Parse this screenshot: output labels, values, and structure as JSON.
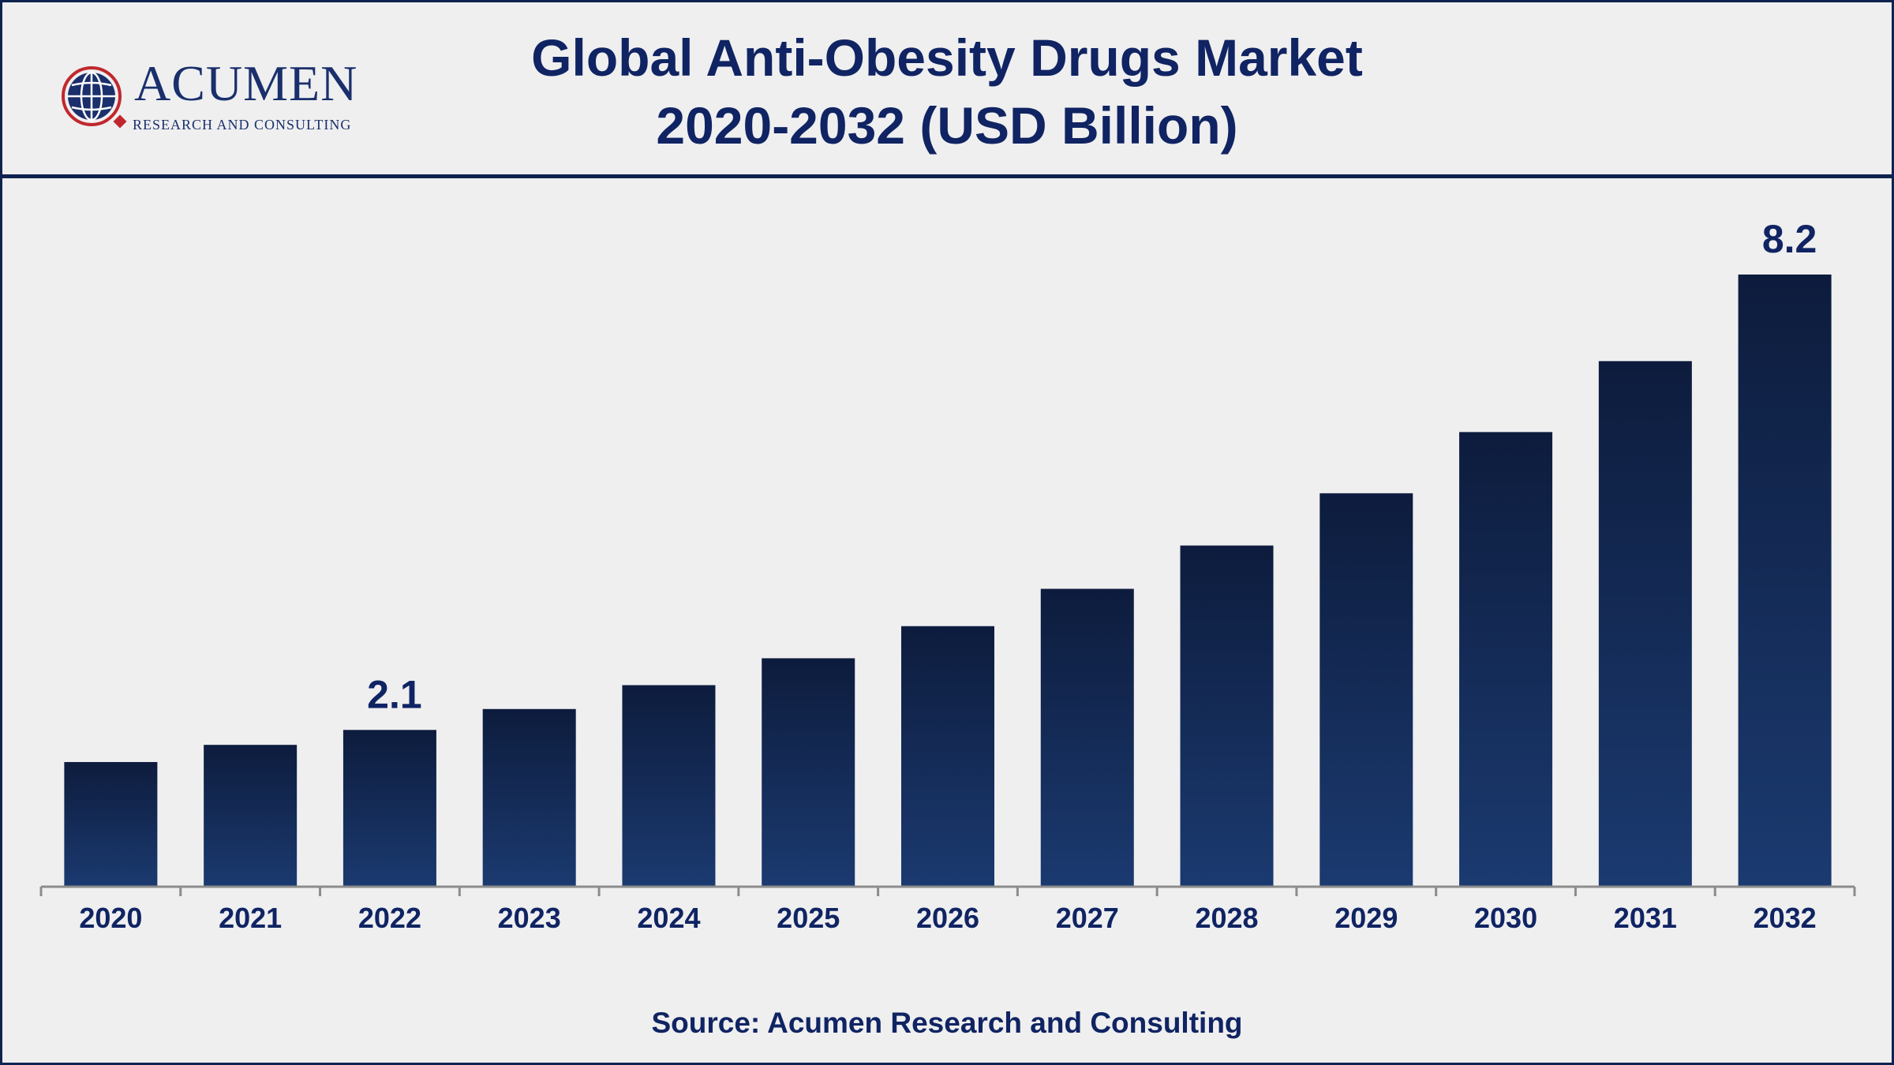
{
  "logo": {
    "name": "Acumen",
    "tagline": "RESEARCH AND CONSULTING"
  },
  "title_line1": "Global Anti-Obesity Drugs Market",
  "title_line2": "2020-2032 (USD Billion)",
  "source": "Source: Acumen Research and Consulting",
  "colors": {
    "bar_top": "#0d1c3d",
    "bar_bottom": "#1b3a70",
    "text": "#102463",
    "axis": "#8c8c8c"
  },
  "chart_data": {
    "type": "bar",
    "title": "Global Anti-Obesity Drugs Market 2020-2032 (USD Billion)",
    "xlabel": "",
    "ylabel": "",
    "categories": [
      "2020",
      "2021",
      "2022",
      "2023",
      "2024",
      "2025",
      "2026",
      "2027",
      "2028",
      "2029",
      "2030",
      "2031",
      "2032"
    ],
    "values": [
      1.67,
      1.9,
      2.1,
      2.38,
      2.7,
      3.06,
      3.49,
      3.99,
      4.57,
      5.27,
      6.09,
      7.04,
      8.2
    ],
    "data_labels": [
      {
        "category": "2022",
        "text": "2.1"
      },
      {
        "category": "2032",
        "text": "8.2"
      }
    ],
    "ylim": [
      0,
      8.2
    ],
    "grid": false,
    "legend": "none"
  }
}
